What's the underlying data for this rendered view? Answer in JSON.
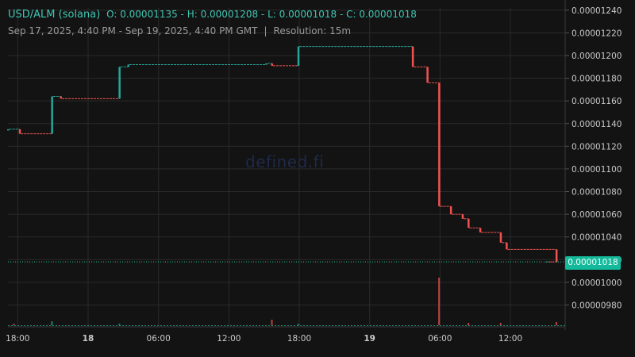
{
  "header": {
    "pair": "USD/ALM (solana)",
    "ohlc": "O: 0.00001135 - H: 0.00001208 - L: 0.00001018 - C: 0.00001018",
    "range": "Sep 17, 2025, 4:40 PM - Sep 19, 2025, 4:40 PM GMT",
    "separator": "|",
    "resolution": "Resolution: 15m"
  },
  "watermark": "defined.fi",
  "last_price_label": "0.00001018",
  "colors": {
    "up": "#26a69a",
    "down": "#ef5350",
    "last_line": "#26c6a0",
    "grid": "#2a2a2a",
    "background": "#131313"
  },
  "chart_data": {
    "type": "candlestick",
    "y_axis": {
      "range": [
        9.6e-06,
        1.242e-05
      ],
      "ticks": [
        "0.00000980",
        "0.00001000",
        "0.00001020",
        "0.00001040",
        "0.00001060",
        "0.00001080",
        "0.00001100",
        "0.00001120",
        "0.00001140",
        "0.00001160",
        "0.00001180",
        "0.00001200",
        "0.00001220",
        "0.00001240"
      ],
      "tick_values": [
        9.8e-06,
        1e-05,
        1.02e-05,
        1.04e-05,
        1.06e-05,
        1.08e-05,
        1.1e-05,
        1.12e-05,
        1.14e-05,
        1.16e-05,
        1.18e-05,
        1.2e-05,
        1.22e-05,
        1.24e-05
      ]
    },
    "x_axis": {
      "start": "2025-09-17T17:10",
      "end": "2025-09-19T16:40",
      "ticks": [
        {
          "label": "18:00",
          "time": "2025-09-17T18:00",
          "bold": false
        },
        {
          "label": "18",
          "time": "2025-09-18T00:00",
          "bold": true
        },
        {
          "label": "06:00",
          "time": "2025-09-18T06:00",
          "bold": false
        },
        {
          "label": "12:00",
          "time": "2025-09-18T12:00",
          "bold": false
        },
        {
          "label": "18:00",
          "time": "2025-09-18T18:00",
          "bold": false
        },
        {
          "label": "19",
          "time": "2025-09-19T00:00",
          "bold": true
        },
        {
          "label": "06:00",
          "time": "2025-09-19T06:00",
          "bold": false
        },
        {
          "label": "12:00",
          "time": "2025-09-19T12:00",
          "bold": false
        }
      ]
    },
    "candles": [
      {
        "t": "2025-09-17T17:10",
        "o": 1.135e-05,
        "c": 1.135e-05
      },
      {
        "t": "2025-09-17T18:10",
        "o": 1.135e-05,
        "c": 1.131e-05
      },
      {
        "t": "2025-09-17T20:55",
        "o": 1.131e-05,
        "c": 1.164e-05
      },
      {
        "t": "2025-09-17T21:40",
        "o": 1.164e-05,
        "c": 1.162e-05
      },
      {
        "t": "2025-09-18T02:40",
        "o": 1.162e-05,
        "c": 1.19e-05
      },
      {
        "t": "2025-09-18T03:25",
        "o": 1.19e-05,
        "c": 1.192e-05
      },
      {
        "t": "2025-09-18T15:10",
        "o": 1.192e-05,
        "c": 1.193e-05
      },
      {
        "t": "2025-09-18T15:40",
        "o": 1.193e-05,
        "c": 1.191e-05
      },
      {
        "t": "2025-09-18T17:55",
        "o": 1.191e-05,
        "c": 1.208e-05
      },
      {
        "t": "2025-09-19T03:40",
        "o": 1.208e-05,
        "c": 1.19e-05
      },
      {
        "t": "2025-09-19T04:55",
        "o": 1.19e-05,
        "c": 1.176e-05
      },
      {
        "t": "2025-09-19T05:55",
        "o": 1.176e-05,
        "c": 1.067e-05
      },
      {
        "t": "2025-09-19T06:55",
        "o": 1.067e-05,
        "c": 1.06e-05
      },
      {
        "t": "2025-09-19T07:55",
        "o": 1.06e-05,
        "c": 1.056e-05
      },
      {
        "t": "2025-09-19T08:25",
        "o": 1.056e-05,
        "c": 1.048e-05
      },
      {
        "t": "2025-09-19T09:25",
        "o": 1.048e-05,
        "c": 1.044e-05
      },
      {
        "t": "2025-09-19T11:10",
        "o": 1.044e-05,
        "c": 1.035e-05
      },
      {
        "t": "2025-09-19T11:40",
        "o": 1.035e-05,
        "c": 1.029e-05
      },
      {
        "t": "2025-09-19T15:55",
        "o": 1.029e-05,
        "c": 1.018e-05
      }
    ],
    "volume": [
      {
        "t": "2025-09-17T17:40",
        "v": 2,
        "up": false
      },
      {
        "t": "2025-09-17T20:55",
        "v": 5,
        "up": true
      },
      {
        "t": "2025-09-18T02:40",
        "v": 2,
        "up": true
      },
      {
        "t": "2025-09-18T15:40",
        "v": 7,
        "up": false
      },
      {
        "t": "2025-09-18T17:55",
        "v": 2,
        "up": true
      },
      {
        "t": "2025-09-19T05:55",
        "v": 60,
        "up": false
      },
      {
        "t": "2025-09-19T08:25",
        "v": 3,
        "up": false
      },
      {
        "t": "2025-09-19T11:10",
        "v": 3,
        "up": false
      },
      {
        "t": "2025-09-19T15:55",
        "v": 4,
        "up": false
      }
    ],
    "last_price": 1.018e-05
  }
}
